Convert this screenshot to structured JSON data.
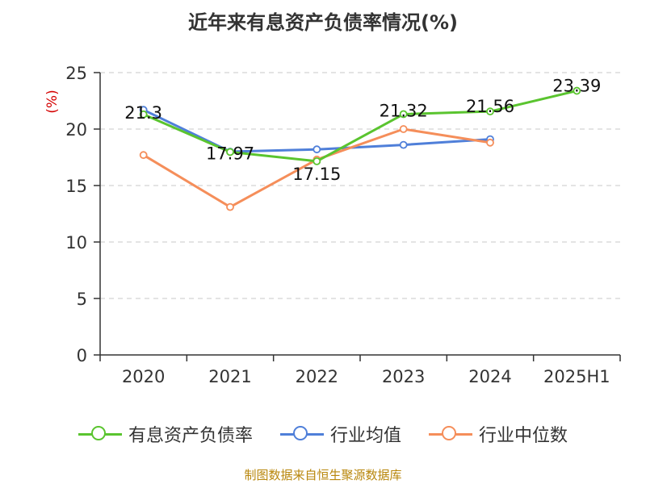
{
  "title": "近年来有息资产负债率情况(%)",
  "source_note": "制图数据来自恒生聚源数据库",
  "chart_data": {
    "type": "line",
    "title": "近年来有息资产负债率情况(%)",
    "ylabel": "(%)",
    "xlabel": "",
    "categories": [
      "2020",
      "2021",
      "2022",
      "2023",
      "2024",
      "2025H1"
    ],
    "ylim": [
      0,
      25
    ],
    "yticks": [
      0,
      5,
      10,
      15,
      20,
      25
    ],
    "grid": true,
    "legend_position": "bottom",
    "series": [
      {
        "name": "有息资产负债率",
        "color": "#5ac42f",
        "values": [
          21.3,
          17.97,
          17.15,
          21.32,
          21.56,
          23.39
        ],
        "labels": [
          "21.3",
          "17.97",
          "17.15",
          "21.32",
          "21.56",
          "23.39"
        ]
      },
      {
        "name": "行业均值",
        "color": "#4f7fd9",
        "values": [
          21.7,
          18.0,
          18.2,
          18.6,
          19.1,
          null
        ]
      },
      {
        "name": "行业中位数",
        "color": "#f58e5a",
        "values": [
          17.7,
          13.1,
          17.3,
          20.0,
          18.8,
          null
        ]
      }
    ]
  }
}
